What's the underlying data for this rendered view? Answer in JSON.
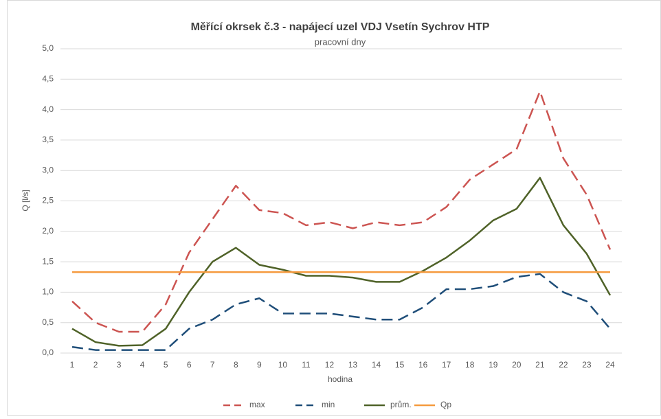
{
  "chart_data": {
    "type": "line",
    "title": "Měřící okrsek č.3 - napájecí uzel VDJ Vsetín Sychrov HTP",
    "subtitle": "pracovní dny",
    "x_label": "hodina",
    "y_label": "Q [l/s]",
    "categories": [
      1,
      2,
      3,
      4,
      5,
      6,
      7,
      8,
      9,
      10,
      11,
      12,
      13,
      14,
      15,
      16,
      17,
      18,
      19,
      20,
      21,
      22,
      23,
      24
    ],
    "ylim": [
      0,
      5
    ],
    "yticks": [
      {
        "value": 0,
        "label": "0,0"
      },
      {
        "value": 0.5,
        "label": "0,5"
      },
      {
        "value": 1,
        "label": "1,0"
      },
      {
        "value": 1.5,
        "label": "1,5"
      },
      {
        "value": 2,
        "label": "2,0"
      },
      {
        "value": 2.5,
        "label": "2,5"
      },
      {
        "value": 3,
        "label": "3,0"
      },
      {
        "value": 3.5,
        "label": "3,5"
      },
      {
        "value": 4,
        "label": "4,0"
      },
      {
        "value": 4.5,
        "label": "4,5"
      },
      {
        "value": 5,
        "label": "5,0"
      }
    ],
    "grid": true,
    "legend": "bottom",
    "series": [
      {
        "name": "max",
        "color": "#cc5451",
        "dashed": true,
        "values": [
          0.85,
          0.5,
          0.35,
          0.35,
          0.8,
          1.65,
          2.2,
          2.75,
          2.35,
          2.3,
          2.1,
          2.15,
          2.05,
          2.15,
          2.1,
          2.15,
          2.4,
          2.85,
          3.1,
          3.35,
          4.3,
          3.2,
          2.6,
          1.7
        ]
      },
      {
        "name": "min",
        "color": "#1f4e79",
        "dashed": true,
        "values": [
          0.1,
          0.05,
          0.05,
          0.05,
          0.05,
          0.4,
          0.55,
          0.8,
          0.9,
          0.65,
          0.65,
          0.65,
          0.6,
          0.55,
          0.55,
          0.75,
          1.05,
          1.05,
          1.1,
          1.25,
          1.3,
          1.0,
          0.85,
          0.4
        ]
      },
      {
        "name": "prům.",
        "color": "#4f6228",
        "dashed": false,
        "values": [
          0.4,
          0.18,
          0.12,
          0.13,
          0.4,
          1.0,
          1.5,
          1.73,
          1.45,
          1.37,
          1.27,
          1.27,
          1.24,
          1.17,
          1.17,
          1.35,
          1.57,
          1.85,
          2.18,
          2.37,
          2.88,
          2.1,
          1.63,
          0.95
        ]
      },
      {
        "name": "Qp",
        "color": "#f59a3e",
        "dashed": false,
        "values": [
          1.33,
          1.33,
          1.33,
          1.33,
          1.33,
          1.33,
          1.33,
          1.33,
          1.33,
          1.33,
          1.33,
          1.33,
          1.33,
          1.33,
          1.33,
          1.33,
          1.33,
          1.33,
          1.33,
          1.33,
          1.33,
          1.33,
          1.33,
          1.33
        ]
      }
    ]
  }
}
